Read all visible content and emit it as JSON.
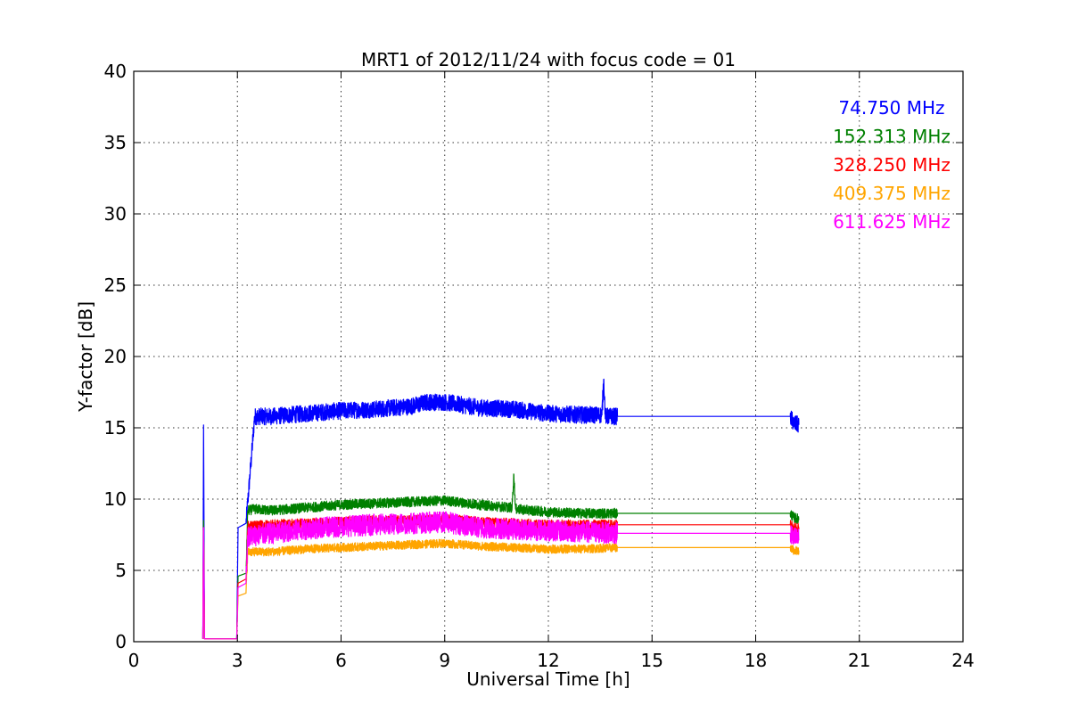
{
  "chart_data": {
    "type": "line",
    "title": "MRT1 of 2012/11/24 with focus code = 01",
    "xlabel": "Universal Time [h]",
    "ylabel": "Y-factor [dB]",
    "xlim": [
      0,
      24
    ],
    "ylim": [
      0,
      40
    ],
    "xticks": [
      0,
      3,
      6,
      9,
      12,
      15,
      18,
      21,
      24
    ],
    "yticks": [
      0,
      5,
      10,
      15,
      20,
      25,
      30,
      35,
      40
    ],
    "grid": true,
    "legend_position": "top-right",
    "series": [
      {
        "name": "74.750 MHz",
        "color": "#0000ff",
        "x": [
          2.0,
          2.02,
          2.05,
          2.1,
          2.5,
          2.98,
          3.02,
          3.25,
          3.5,
          4.0,
          5.0,
          6.0,
          7.0,
          8.0,
          8.5,
          9.0,
          9.5,
          10.0,
          11.0,
          12.0,
          13.0,
          13.55,
          13.6,
          13.65,
          14.0,
          19.0,
          19.1,
          19.25
        ],
        "y": [
          0.2,
          15.2,
          0.2,
          0.2,
          0.2,
          0.2,
          8.0,
          8.3,
          15.8,
          15.8,
          16.0,
          16.2,
          16.3,
          16.5,
          16.8,
          16.8,
          16.6,
          16.4,
          16.3,
          16.0,
          15.9,
          15.9,
          18.4,
          15.8,
          15.8,
          15.8,
          15.3,
          15.2
        ],
        "band": 0.6
      },
      {
        "name": "152.313 MHz",
        "color": "#008000",
        "x": [
          2.0,
          2.02,
          2.05,
          2.5,
          2.98,
          3.02,
          3.25,
          3.3,
          3.5,
          4.0,
          5.0,
          6.0,
          7.0,
          8.0,
          9.0,
          10.0,
          10.95,
          11.0,
          11.05,
          12.0,
          13.0,
          14.0,
          19.0,
          19.1,
          19.25
        ],
        "y": [
          0.2,
          8.5,
          0.2,
          0.2,
          0.2,
          4.6,
          4.8,
          9.2,
          9.3,
          9.2,
          9.4,
          9.6,
          9.7,
          9.8,
          9.9,
          9.6,
          9.4,
          11.7,
          9.3,
          9.1,
          9.0,
          9.0,
          9.0,
          8.7,
          8.6
        ],
        "band": 0.35
      },
      {
        "name": "328.250 MHz",
        "color": "#ff0000",
        "x": [
          2.0,
          2.02,
          2.05,
          2.5,
          2.98,
          3.02,
          3.25,
          3.3,
          4.0,
          5.0,
          6.0,
          7.0,
          8.0,
          9.0,
          10.0,
          11.0,
          12.0,
          13.0,
          14.0,
          19.0,
          19.1,
          19.25
        ],
        "y": [
          0.2,
          8.0,
          0.2,
          0.2,
          0.2,
          4.1,
          4.4,
          8.1,
          8.2,
          8.3,
          8.4,
          8.5,
          8.5,
          8.6,
          8.4,
          8.3,
          8.2,
          8.2,
          8.2,
          8.2,
          8.0,
          8.0
        ],
        "band": 0.35
      },
      {
        "name": "409.375 MHz",
        "color": "#ffa500",
        "x": [
          2.0,
          2.02,
          2.05,
          2.5,
          2.98,
          3.02,
          3.25,
          3.3,
          4.0,
          5.0,
          6.0,
          7.0,
          8.0,
          9.0,
          10.0,
          11.0,
          12.0,
          13.0,
          14.0,
          19.0,
          19.1,
          19.25
        ],
        "y": [
          0.2,
          7.8,
          0.2,
          0.2,
          0.2,
          3.2,
          3.4,
          6.3,
          6.3,
          6.5,
          6.6,
          6.7,
          6.8,
          6.9,
          6.7,
          6.6,
          6.5,
          6.5,
          6.6,
          6.6,
          6.4,
          6.4
        ],
        "band": 0.3
      },
      {
        "name": "611.625 MHz",
        "color": "#ff00ff",
        "x": [
          2.0,
          2.02,
          2.05,
          2.5,
          2.98,
          3.02,
          3.25,
          3.3,
          4.0,
          5.0,
          6.0,
          7.0,
          8.0,
          9.0,
          10.0,
          11.0,
          12.0,
          13.0,
          14.0,
          19.0,
          19.1,
          19.25
        ],
        "y": [
          0.2,
          8.0,
          0.2,
          0.2,
          0.2,
          3.8,
          4.1,
          7.4,
          7.6,
          7.9,
          8.1,
          8.2,
          8.3,
          8.4,
          8.0,
          7.9,
          7.8,
          7.7,
          7.6,
          7.6,
          7.3,
          7.2
        ],
        "band": 0.75
      }
    ]
  }
}
